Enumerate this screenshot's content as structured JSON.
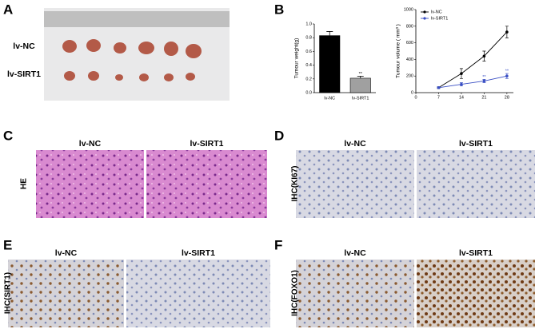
{
  "panels": [
    {
      "letter": "A",
      "rows": [
        "lv-NC",
        "lv-SIRT1"
      ]
    },
    {
      "letter": "B"
    },
    {
      "letter": "C",
      "columns": [
        "lv-NC",
        "lv-SIRT1"
      ],
      "row_label": "HE"
    },
    {
      "letter": "D",
      "columns": [
        "lv-NC",
        "lv-SIRT1"
      ],
      "row_label": "IHC(KI67)"
    },
    {
      "letter": "E",
      "columns": [
        "lv-NC",
        "lv-SIRT1"
      ],
      "row_label": "IHC(SIRT1)"
    },
    {
      "letter": "F",
      "columns": [
        "lv-NC",
        "lv-SIRT1"
      ],
      "row_label": "IHC(FOXO1)"
    }
  ],
  "chart_data": [
    {
      "type": "bar",
      "y_label": "Tumour weight(g)",
      "categories": [
        "lv-NC",
        "lv-SIRT1"
      ],
      "values": [
        0.83,
        0.21
      ],
      "errors": [
        0.06,
        0.03
      ],
      "significance": [
        null,
        "**"
      ],
      "colors": [
        "#000000",
        "#a0a0a0"
      ],
      "ylim": [
        0,
        1
      ],
      "yticks": [
        {
          "value": 0,
          "label": "0.0"
        },
        0.2,
        0.4,
        0.6,
        0.8,
        {
          "value": 1,
          "label": "1.0"
        }
      ]
    },
    {
      "type": "line",
      "y_label": "Tumour volume ( mm³ )",
      "x": [
        7,
        14,
        21,
        28
      ],
      "xlim": [
        0,
        30
      ],
      "xticks": [
        0,
        7,
        14,
        21,
        28
      ],
      "ylim": [
        0,
        1000
      ],
      "yticks": [
        0,
        200,
        400,
        600,
        800,
        1000
      ],
      "legend": "top-left",
      "series": [
        {
          "name": "lv-NC",
          "color": "#000000",
          "values": [
            60,
            230,
            440,
            730
          ],
          "errors": [
            10,
            60,
            60,
            70
          ],
          "significance": [
            null,
            null,
            null,
            null
          ]
        },
        {
          "name": "lv-SIRT1",
          "color": "#3a4fc4",
          "values": [
            60,
            100,
            140,
            200
          ],
          "errors": [
            10,
            20,
            20,
            30
          ],
          "significance": [
            null,
            null,
            "**",
            "**"
          ]
        }
      ]
    }
  ]
}
